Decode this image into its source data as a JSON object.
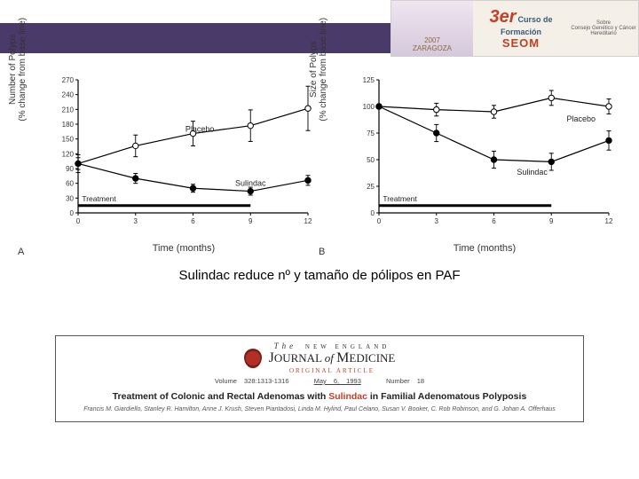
{
  "header": {
    "zaragoza": "2007\nZARAGOZA",
    "curso_num": "3er",
    "curso_l1": "Curso de",
    "curso_l2": "Formación",
    "curso_l3": "SEOM",
    "sobre": "Sobre\nConsejo Genético y Cáncer\nHereditario"
  },
  "chartA": {
    "panel": "A",
    "ylabel": "Number of Polyps\n(% change from base line)",
    "xlabel": "Time (months)",
    "ylim": [
      0,
      270
    ],
    "ytick_step": 30,
    "xlim": [
      0,
      12
    ],
    "xtick_step": 3,
    "treatment_label": "Treatment",
    "treatment_bar": [
      0,
      9
    ],
    "series": [
      {
        "name": "Placebo",
        "label": "Placebo",
        "label_pos": [
          5.6,
          165
        ],
        "marker": "open",
        "color": "#000000",
        "x": [
          0,
          3,
          6,
          9,
          12
        ],
        "y": [
          100,
          136,
          161,
          177,
          212
        ],
        "err": [
          18,
          22,
          25,
          32,
          45
        ]
      },
      {
        "name": "Sulindac",
        "label": "Sulindac",
        "label_pos": [
          8.2,
          55
        ],
        "marker": "closed",
        "color": "#000000",
        "x": [
          0,
          3,
          6,
          9,
          12
        ],
        "y": [
          100,
          70,
          50,
          44,
          66
        ],
        "err": [
          12,
          10,
          8,
          8,
          10
        ]
      }
    ],
    "background_color": "#ffffff",
    "axis_color": "#000000",
    "label_fontsize": 10
  },
  "chartB": {
    "panel": "B",
    "ylabel": "Size of Polyps\n(% change from base line)",
    "xlabel": "Time (months)",
    "ylim": [
      0,
      125
    ],
    "ytick_step": 25,
    "xlim": [
      0,
      12
    ],
    "xtick_step": 3,
    "treatment_label": "Treatment",
    "treatment_bar": [
      0,
      9
    ],
    "series": [
      {
        "name": "Placebo",
        "label": "Placebo",
        "label_pos": [
          9.8,
          86
        ],
        "marker": "open",
        "color": "#000000",
        "x": [
          0,
          3,
          6,
          9,
          12
        ],
        "y": [
          100,
          97,
          95,
          108,
          100
        ],
        "err": [
          0,
          6,
          6,
          7,
          7
        ]
      },
      {
        "name": "Sulindac",
        "label": "Sulindac",
        "label_pos": [
          7.2,
          36
        ],
        "marker": "closed",
        "color": "#000000",
        "x": [
          0,
          3,
          6,
          9,
          12
        ],
        "y": [
          100,
          75,
          50,
          48,
          68
        ],
        "err": [
          0,
          8,
          8,
          8,
          9
        ]
      }
    ],
    "background_color": "#ffffff",
    "axis_color": "#000000",
    "label_fontsize": 10
  },
  "caption": "Sulindac reduce nº y tamaño de pólipos en PAF",
  "citation": {
    "the": "The",
    "journal_l1": "NEW ENGLAND",
    "journal_l2": "JOURNAL of MEDICINE",
    "original": "ORIGINAL ARTICLE",
    "volume": "Volume 328:1313-1316",
    "date": "May 6, 1993",
    "number": "Number 18",
    "title_pre": "Treatment of Colonic and Rectal Adenomas with ",
    "title_hl": "Sulindac",
    "title_post": " in Familial Adenomatous Polyposis",
    "authors": "Francis M. Giardiello, Stanley R. Hamilton, Anne J. Krush, Steven Piantadosi, Linda M. Hylind, Paul Celano, Susan V. Booker, C. Rob Robinson, and G. Johan A. Offerhaus"
  }
}
